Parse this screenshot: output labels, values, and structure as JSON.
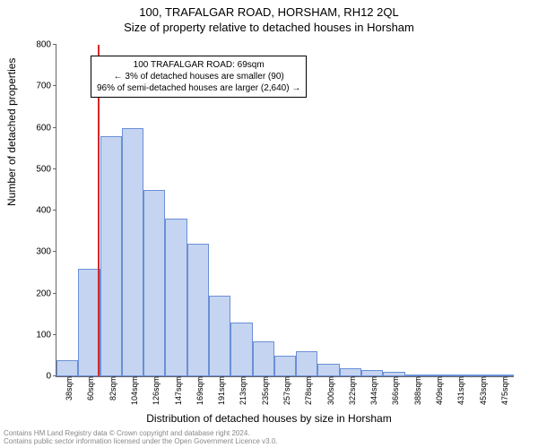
{
  "header": {
    "title": "100, TRAFALGAR ROAD, HORSHAM, RH12 2QL",
    "subtitle": "Size of property relative to detached houses in Horsham"
  },
  "chart": {
    "type": "histogram",
    "ylabel": "Number of detached properties",
    "xlabel": "Distribution of detached houses by size in Horsham",
    "ylim": [
      0,
      800
    ],
    "ytick_step": 100,
    "yticks": [
      0,
      100,
      200,
      300,
      400,
      500,
      600,
      700,
      800
    ],
    "bar_fill": "#c5d4f0",
    "bar_stroke": "#6a8fd8",
    "background_color": "#ffffff",
    "axis_color": "#666666",
    "categories": [
      "38sqm",
      "60sqm",
      "82sqm",
      "104sqm",
      "126sqm",
      "147sqm",
      "169sqm",
      "191sqm",
      "213sqm",
      "235sqm",
      "257sqm",
      "278sqm",
      "300sqm",
      "322sqm",
      "344sqm",
      "366sqm",
      "388sqm",
      "409sqm",
      "431sqm",
      "453sqm",
      "475sqm"
    ],
    "values": [
      38,
      260,
      580,
      600,
      450,
      380,
      320,
      195,
      130,
      85,
      50,
      60,
      30,
      20,
      15,
      10,
      5,
      5,
      2,
      2,
      1
    ],
    "marker": {
      "position_category_index": 1.4,
      "color": "#d02a2a"
    },
    "annotation": {
      "lines": [
        "100 TRAFALGAR ROAD: 69sqm",
        "← 3% of detached houses are smaller (90)",
        "96% of semi-detached houses are larger (2,640) →"
      ],
      "border_color": "#000000",
      "background": "#ffffff",
      "fontsize": 10
    }
  },
  "footer": {
    "line1": "Contains HM Land Registry data © Crown copyright and database right 2024.",
    "line2": "Contains public sector information licensed under the Open Government Licence v3.0."
  }
}
